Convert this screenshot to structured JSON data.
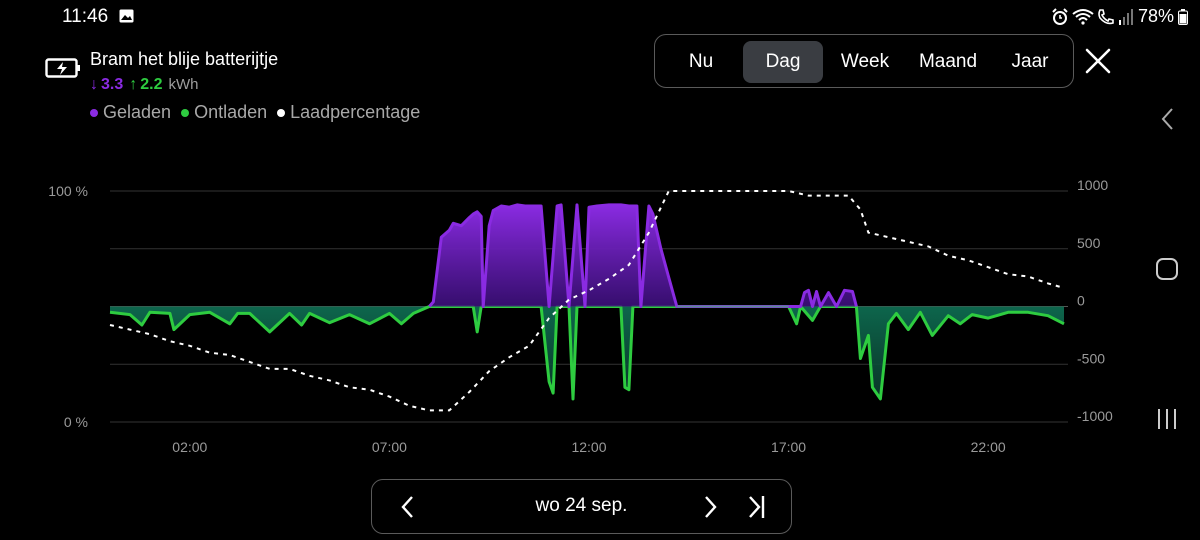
{
  "status_bar": {
    "time": "11:46",
    "battery": "78%"
  },
  "header": {
    "device_name": "Bram het blije batterijtje",
    "charged_arrow": "↓",
    "charged_value": "3.3",
    "discharged_arrow": "↑",
    "discharged_value": "2.2",
    "unit": "kWh",
    "legend": [
      {
        "label": "Geladen",
        "color": "#8a2be2"
      },
      {
        "label": "Ontladen",
        "color": "#2ecc40"
      },
      {
        "label": "Laadpercentage",
        "color": "#ffffff"
      }
    ]
  },
  "period_selector": {
    "options": [
      "Nu",
      "Dag",
      "Week",
      "Maand",
      "Jaar"
    ],
    "selected": "Dag"
  },
  "date_nav": {
    "label": "wo 24 sep."
  },
  "chart_data": {
    "type": "area",
    "x_ticks": [
      "02:00",
      "07:00",
      "12:00",
      "17:00",
      "22:00"
    ],
    "y_left_ticks": [
      "100 %",
      "0 %"
    ],
    "y_right_ticks": [
      "1000",
      "500",
      "0",
      "-500",
      "-1000"
    ],
    "ylim_power": [
      -1000,
      1000
    ],
    "ylim_percent": [
      0,
      100
    ],
    "series": [
      {
        "name": "Geladen",
        "color": "#8a2be2",
        "x": [
          8.0,
          8.1,
          8.3,
          8.5,
          8.6,
          8.8,
          9.0,
          9.1,
          9.2,
          9.3,
          9.35,
          9.5,
          9.6,
          9.8,
          10.0,
          10.2,
          10.4,
          10.6,
          10.8,
          11.0,
          11.2,
          11.3,
          11.5,
          11.7,
          11.9,
          12.0,
          12.2,
          12.5,
          12.8,
          13.0,
          13.2,
          13.3,
          13.5,
          13.6,
          13.8,
          14.0,
          14.2,
          17.3,
          17.4,
          17.5,
          17.6,
          17.7,
          17.8,
          18.0,
          18.2,
          18.4,
          18.6,
          18.7
        ],
        "values": [
          0,
          40,
          600,
          660,
          720,
          700,
          770,
          800,
          820,
          780,
          0,
          700,
          830,
          870,
          860,
          880,
          870,
          870,
          870,
          0,
          870,
          880,
          0,
          880,
          0,
          860,
          870,
          880,
          880,
          870,
          870,
          0,
          870,
          800,
          500,
          250,
          0,
          0,
          120,
          140,
          0,
          130,
          0,
          120,
          0,
          140,
          130,
          0
        ]
      },
      {
        "name": "Ontladen",
        "color": "#2ecc40",
        "x": [
          0.0,
          0.5,
          0.8,
          1.0,
          1.5,
          1.6,
          2.0,
          2.5,
          3.0,
          3.2,
          3.5,
          4.0,
          4.5,
          4.8,
          5.0,
          5.5,
          6.0,
          6.5,
          7.0,
          7.3,
          7.6,
          8.0,
          9.1,
          9.2,
          9.3,
          10.8,
          11.0,
          11.1,
          11.2,
          11.5,
          11.6,
          11.7,
          12.8,
          12.9,
          13.0,
          13.1,
          14.2,
          17.0,
          17.2,
          17.3,
          17.6,
          17.8,
          18.0,
          18.7,
          18.8,
          19.0,
          19.1,
          19.3,
          19.5,
          19.7,
          20.0,
          20.3,
          20.6,
          21.0,
          21.3,
          21.6,
          22.0,
          22.5,
          23.0,
          23.5,
          23.9
        ],
        "values": [
          -50,
          -70,
          -160,
          -50,
          -60,
          -200,
          -70,
          -50,
          -150,
          -60,
          -60,
          -220,
          -60,
          -160,
          -60,
          -140,
          -70,
          -150,
          -60,
          -150,
          -60,
          0,
          0,
          -220,
          0,
          0,
          -650,
          -750,
          0,
          0,
          -800,
          0,
          0,
          -700,
          -720,
          0,
          0,
          0,
          -150,
          0,
          -120,
          0,
          0,
          0,
          -450,
          -250,
          -700,
          -800,
          -150,
          -60,
          -200,
          -50,
          -250,
          -80,
          -150,
          -70,
          -100,
          -50,
          -50,
          -80,
          -150
        ]
      },
      {
        "name": "Laadpercentage",
        "color": "#ffffff",
        "x": [
          0.0,
          0.5,
          1.0,
          1.5,
          2.0,
          2.5,
          3.0,
          3.5,
          4.0,
          4.5,
          5.0,
          5.5,
          6.0,
          6.5,
          7.0,
          7.5,
          8.0,
          8.5,
          9.0,
          9.5,
          10.0,
          10.5,
          11.0,
          11.5,
          12.0,
          12.5,
          13.0,
          13.5,
          14.0,
          14.5,
          15.0,
          16.0,
          17.0,
          17.5,
          18.0,
          18.5,
          18.8,
          19.0,
          19.5,
          20.0,
          20.5,
          21.0,
          21.5,
          22.0,
          22.5,
          23.0,
          23.5,
          23.9
        ],
        "values": [
          42,
          40,
          38,
          35,
          33,
          30,
          29,
          26,
          23,
          23,
          20,
          18,
          15,
          14,
          11,
          7,
          5,
          5,
          13,
          22,
          28,
          33,
          45,
          53,
          57,
          62,
          68,
          82,
          100,
          100,
          100,
          100,
          100,
          98,
          98,
          98,
          92,
          82,
          80,
          78,
          76,
          72,
          70,
          67,
          64,
          63,
          60,
          58
        ]
      }
    ]
  }
}
